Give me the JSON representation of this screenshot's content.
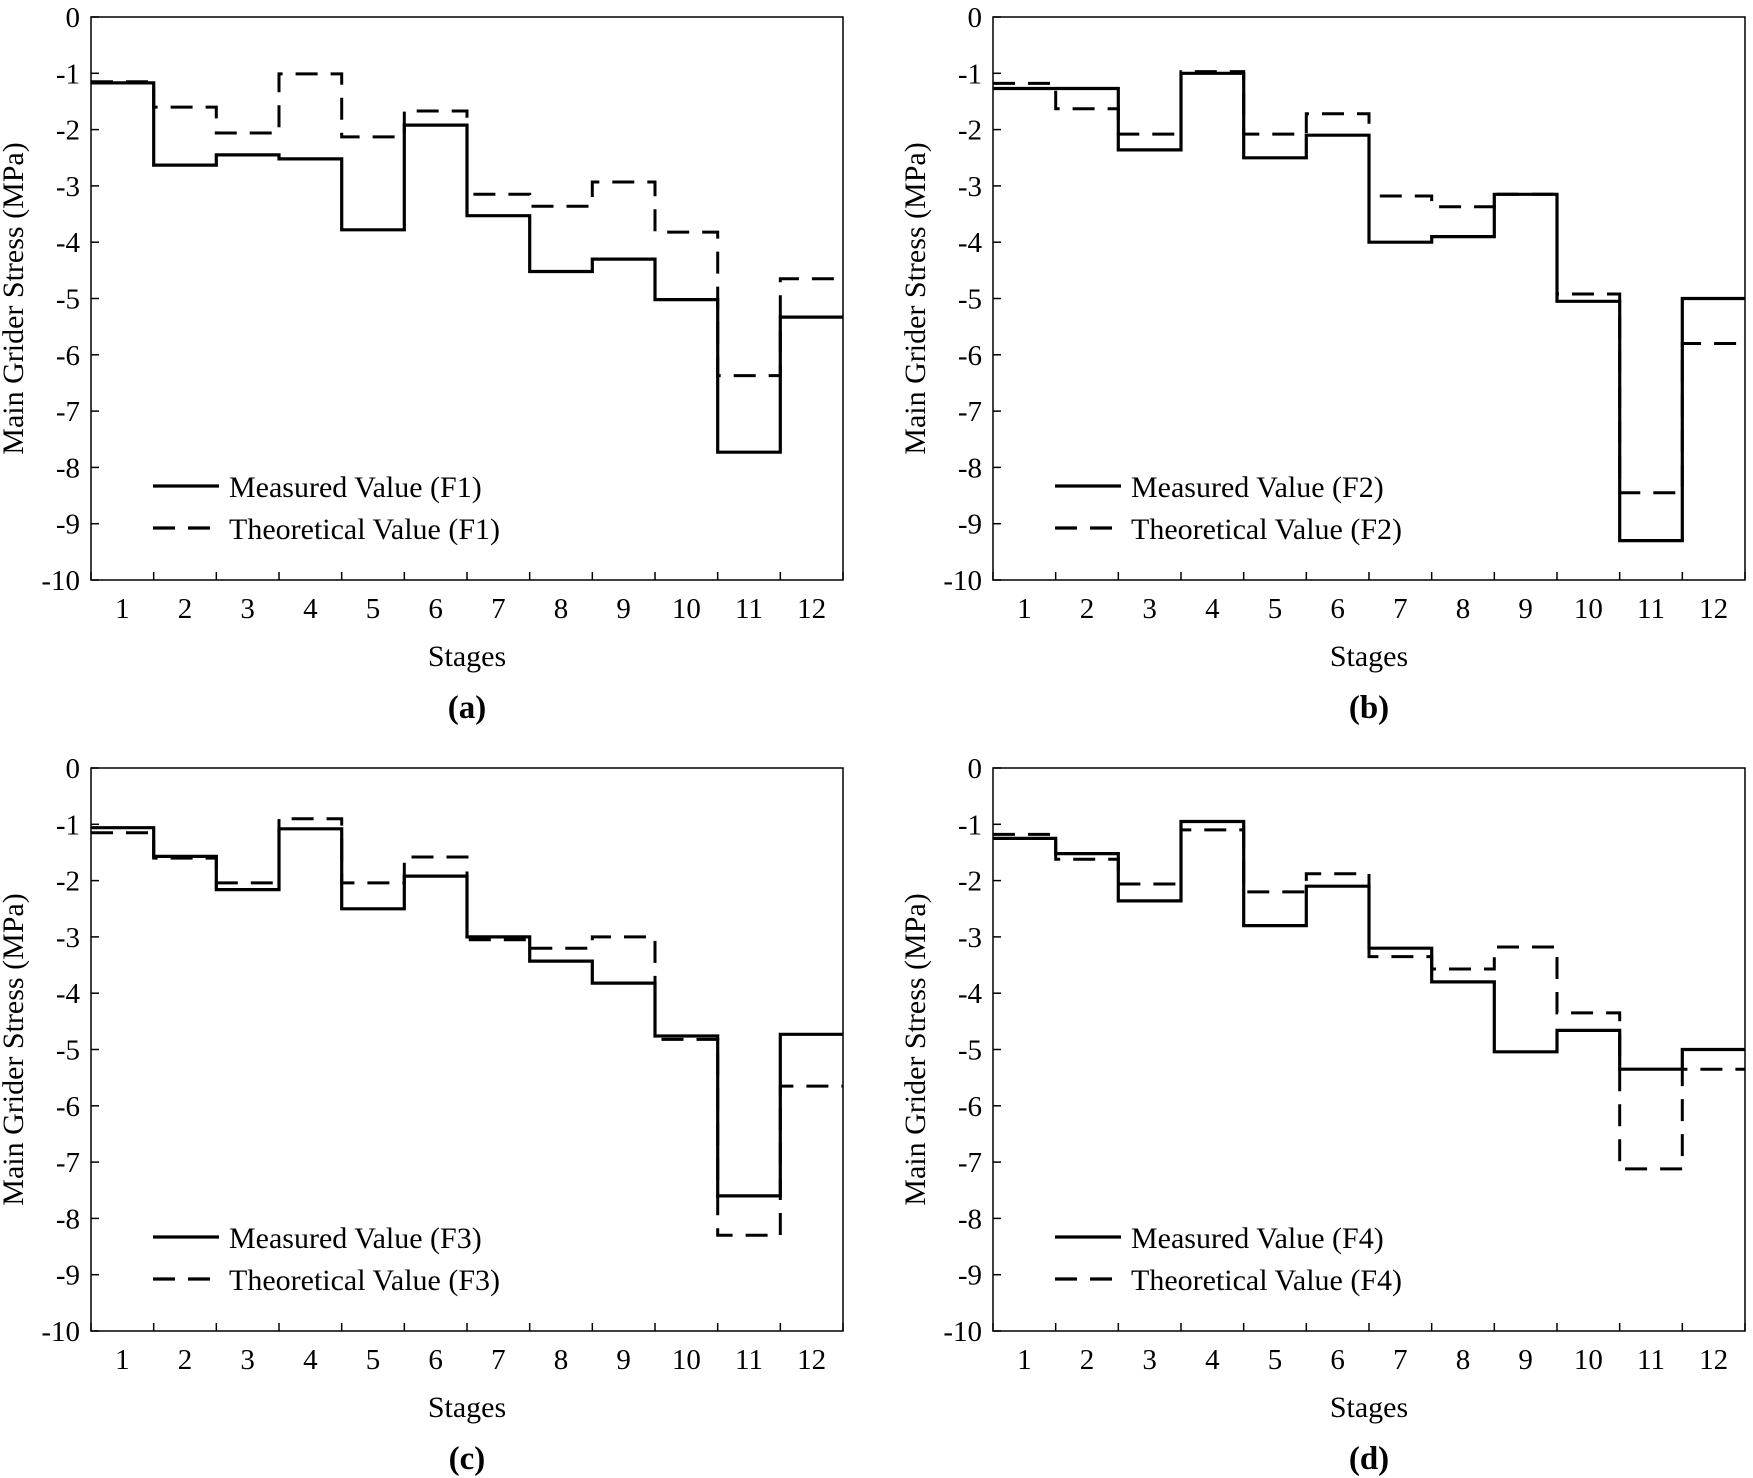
{
  "figure": {
    "panel_labels": [
      "(a)",
      "(b)",
      "(c)",
      "(d)"
    ]
  },
  "colors": {
    "line": "#000000",
    "background": "#ffffff"
  },
  "chart_data": [
    {
      "type": "line",
      "step": true,
      "panel": "(a)",
      "xlabel": "Stages",
      "ylabel": "Main Grider Stress (MPa)",
      "ylim": [
        -10,
        0
      ],
      "yticks": [
        0,
        -1,
        -2,
        -3,
        -4,
        -5,
        -6,
        -7,
        -8,
        -9,
        -10
      ],
      "categories": [
        "1",
        "2",
        "3",
        "4",
        "5",
        "6",
        "7",
        "8",
        "9",
        "10",
        "11",
        "12"
      ],
      "legend_position": "bottom-left",
      "series": [
        {
          "name": "Measured Value (F1)",
          "style": "solid",
          "values": [
            -1.17,
            -2.63,
            -2.45,
            -2.52,
            -3.78,
            -1.92,
            -3.53,
            -4.52,
            -4.3,
            -5.02,
            -7.73,
            -5.33
          ]
        },
        {
          "name": "Theoretical Value (F1)",
          "style": "dashed",
          "values": [
            -1.15,
            -1.6,
            -2.06,
            -1.01,
            -2.13,
            -1.67,
            -3.15,
            -3.36,
            -2.93,
            -3.82,
            -6.37,
            -4.65
          ]
        }
      ]
    },
    {
      "type": "line",
      "step": true,
      "panel": "(b)",
      "xlabel": "Stages",
      "ylabel": "Main Grider Stress (MPa)",
      "ylim": [
        -10,
        0
      ],
      "yticks": [
        0,
        -1,
        -2,
        -3,
        -4,
        -5,
        -6,
        -7,
        -8,
        -9,
        -10
      ],
      "categories": [
        "1",
        "2",
        "3",
        "4",
        "5",
        "6",
        "7",
        "8",
        "9",
        "10",
        "11",
        "12"
      ],
      "legend_position": "bottom-left",
      "series": [
        {
          "name": "Measured Value (F2)",
          "style": "solid",
          "values": [
            -1.27,
            -1.27,
            -2.36,
            -1.0,
            -2.5,
            -2.1,
            -4.0,
            -3.9,
            -3.15,
            -5.05,
            -9.3,
            -5.0
          ]
        },
        {
          "name": "Theoretical Value (F2)",
          "style": "dashed",
          "values": [
            -1.18,
            -1.63,
            -2.08,
            -0.97,
            -2.08,
            -1.72,
            -3.18,
            -3.37,
            -3.15,
            -4.92,
            -8.45,
            -5.8
          ]
        }
      ]
    },
    {
      "type": "line",
      "step": true,
      "panel": "(c)",
      "xlabel": "Stages",
      "ylabel": "Main Grider Stress (MPa)",
      "ylim": [
        -10,
        0
      ],
      "yticks": [
        0,
        -1,
        -2,
        -3,
        -4,
        -5,
        -6,
        -7,
        -8,
        -9,
        -10
      ],
      "categories": [
        "1",
        "2",
        "3",
        "4",
        "5",
        "6",
        "7",
        "8",
        "9",
        "10",
        "11",
        "12"
      ],
      "legend_position": "bottom-left",
      "series": [
        {
          "name": "Measured Value (F3)",
          "style": "solid",
          "values": [
            -1.06,
            -1.57,
            -2.16,
            -1.08,
            -2.5,
            -1.92,
            -3.0,
            -3.43,
            -3.82,
            -4.76,
            -7.6,
            -4.73
          ]
        },
        {
          "name": "Theoretical Value (F3)",
          "style": "dashed",
          "values": [
            -1.15,
            -1.6,
            -2.04,
            -0.9,
            -2.04,
            -1.58,
            -3.05,
            -3.2,
            -3.0,
            -4.82,
            -8.3,
            -5.65
          ]
        }
      ]
    },
    {
      "type": "line",
      "step": true,
      "panel": "(d)",
      "xlabel": "Stages",
      "ylabel": "Main Grider Stress (MPa)",
      "ylim": [
        -10,
        0
      ],
      "yticks": [
        0,
        -1,
        -2,
        -3,
        -4,
        -5,
        -6,
        -7,
        -8,
        -9,
        -10
      ],
      "categories": [
        "1",
        "2",
        "3",
        "4",
        "5",
        "6",
        "7",
        "8",
        "9",
        "10",
        "11",
        "12"
      ],
      "legend_position": "bottom-left",
      "series": [
        {
          "name": "Measured Value (F4)",
          "style": "solid",
          "values": [
            -1.25,
            -1.52,
            -2.36,
            -0.95,
            -2.8,
            -2.1,
            -3.2,
            -3.8,
            -5.04,
            -4.66,
            -5.35,
            -5.0
          ]
        },
        {
          "name": "Theoretical Value (F4)",
          "style": "dashed",
          "values": [
            -1.18,
            -1.62,
            -2.06,
            -1.1,
            -2.2,
            -1.88,
            -3.35,
            -3.57,
            -3.18,
            -4.35,
            -7.12,
            -5.35
          ]
        }
      ]
    }
  ]
}
